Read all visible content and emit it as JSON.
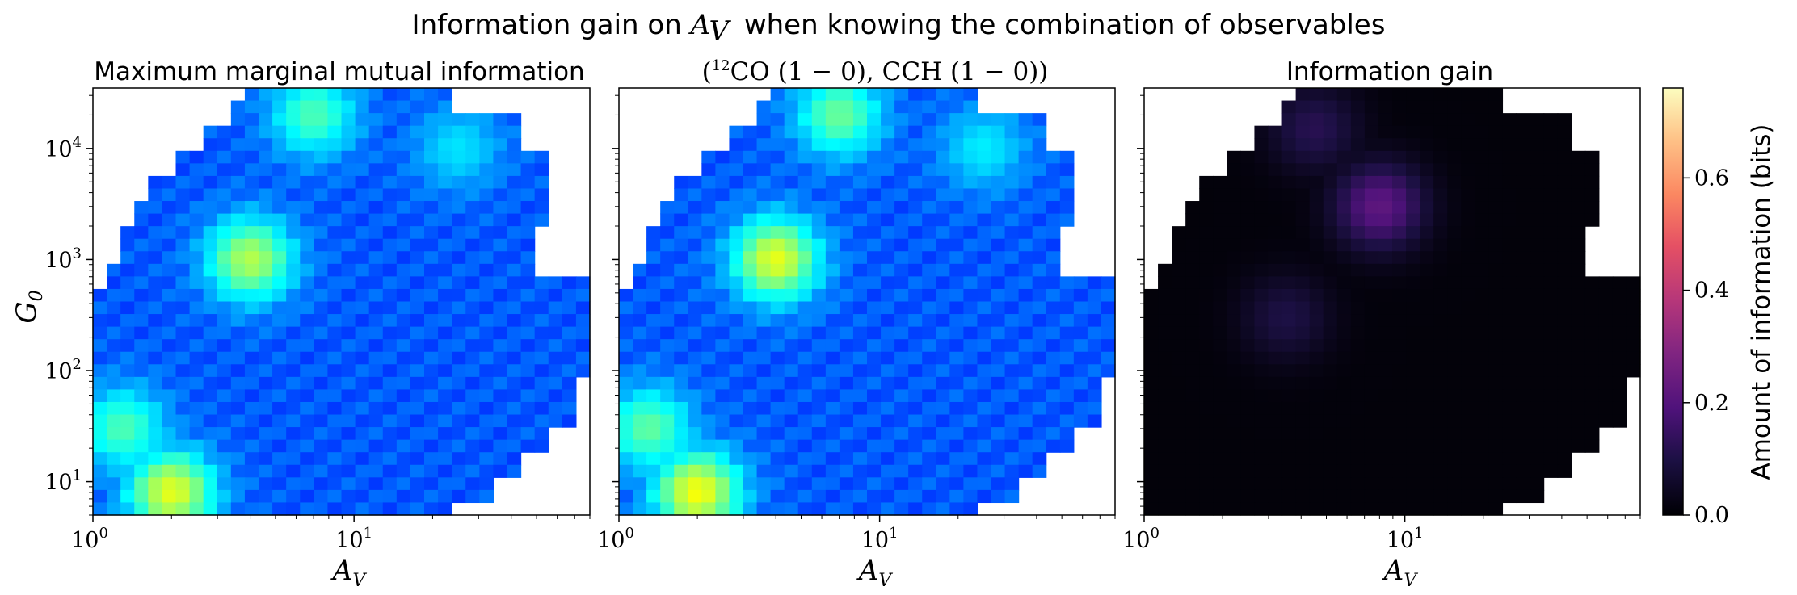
{
  "figure": {
    "suptitle": "Information gain on",
    "suptitle_math": "A",
    "suptitle_sub": "V",
    "suptitle_rest": "when knowing the combination of observables"
  },
  "chart_data": [
    {
      "type": "heatmap",
      "title": "Maximum marginal mutual information",
      "xlabel": "A_V",
      "ylabel": "G_0",
      "xscale": "log",
      "yscale": "log",
      "xlim": [
        1,
        80
      ],
      "ylim": [
        5,
        35000
      ],
      "colormap": "jet",
      "x_ticks": [
        "10^0",
        "10^1"
      ],
      "y_ticks": [
        "10^1",
        "10^2",
        "10^3",
        "10^4"
      ],
      "hotspots": [
        {
          "x": 2,
          "y": 8,
          "value": 0.6
        },
        {
          "x": 4,
          "y": 1000,
          "value": 0.55
        },
        {
          "x": 7,
          "y": 20000,
          "value": 0.45
        },
        {
          "x": 1.3,
          "y": 30,
          "value": 0.45
        },
        {
          "x": 25,
          "y": 10000,
          "value": 0.35
        }
      ]
    },
    {
      "type": "heatmap",
      "title_parts": [
        "(",
        "12",
        "CO (1 − 0), CCH (1 − 0))"
      ],
      "xlabel": "A_V",
      "xscale": "log",
      "yscale": "log",
      "xlim": [
        1,
        80
      ],
      "ylim": [
        5,
        35000
      ],
      "colormap": "jet",
      "x_ticks": [
        "10^0",
        "10^1"
      ],
      "hotspots": [
        {
          "x": 2,
          "y": 8,
          "value": 0.62
        },
        {
          "x": 4,
          "y": 1000,
          "value": 0.6
        },
        {
          "x": 7,
          "y": 20000,
          "value": 0.48
        },
        {
          "x": 1.3,
          "y": 30,
          "value": 0.47
        },
        {
          "x": 25,
          "y": 10000,
          "value": 0.36
        }
      ]
    },
    {
      "type": "heatmap",
      "title": "Information gain",
      "xlabel": "A_V",
      "xscale": "log",
      "yscale": "log",
      "xlim": [
        1,
        80
      ],
      "ylim": [
        5,
        35000
      ],
      "colormap": "magma",
      "x_ticks": [
        "10^0",
        "10^1"
      ],
      "hotspots": [
        {
          "x": 8,
          "y": 3000,
          "value": 0.22
        },
        {
          "x": 3.5,
          "y": 300,
          "value": 0.1
        },
        {
          "x": 4.5,
          "y": 15000,
          "value": 0.12
        }
      ]
    }
  ],
  "colorbar": {
    "label": "Amount of information (bits)",
    "vmin": 0,
    "vmax": 0.76,
    "ticks": [
      "0.0",
      "0.2",
      "0.4",
      "0.6"
    ],
    "colormap": "magma"
  }
}
